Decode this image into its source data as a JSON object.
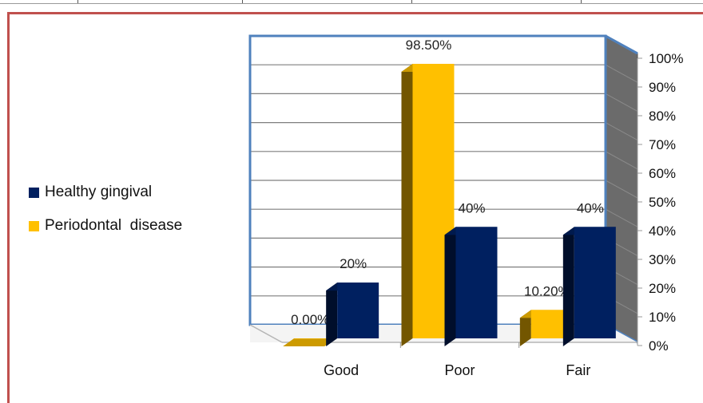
{
  "chart_data": {
    "type": "bar",
    "categories": [
      "Good",
      "Poor",
      "Fair"
    ],
    "series": [
      {
        "name": "Periodontal  disease",
        "values": [
          0.0,
          98.5,
          10.2
        ],
        "labels": [
          "0.00%",
          "98.50%",
          "10.20%"
        ],
        "color": "#ffc000"
      },
      {
        "name": "Healthy gingival",
        "values": [
          20,
          40,
          40
        ],
        "labels": [
          "20%",
          "40%",
          "40%"
        ],
        "color": "#002060"
      }
    ],
    "legend_order": [
      "Healthy gingival",
      "Periodontal  disease"
    ],
    "ylim": [
      0,
      100
    ],
    "yticks": [
      "0%",
      "10%",
      "20%",
      "30%",
      "40%",
      "50%",
      "60%",
      "70%",
      "80%",
      "90%",
      "100%"
    ],
    "grid": true,
    "legend_position": "left",
    "title": "",
    "xlabel": "",
    "ylabel": ""
  },
  "colors": {
    "frame": "#c0504d",
    "plot_border": "#4f81bd",
    "side_wall": "#6b6b6b"
  }
}
